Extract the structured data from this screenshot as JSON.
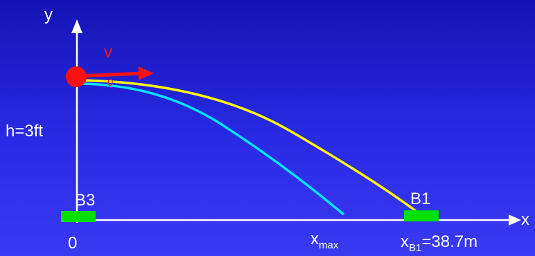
{
  "labels": {
    "y_axis": "y",
    "x_axis": "x",
    "velocity_main": "v",
    "velocity_sub": "0",
    "height": "h=3ft",
    "origin": "0",
    "base_b3": "B3",
    "base_b1": "B1",
    "xmax_main": "x",
    "xmax_sub": "max",
    "xb1_main": "x",
    "xb1_sub": "B1",
    "xb1_value": "=38.7m"
  },
  "colors": {
    "background_top": "#1414b4",
    "background_bottom": "#3a3af2",
    "axes": "#ffffff",
    "ball": "#ff1010",
    "velocity_arrow": "#ff1010",
    "trajectory_long": "#ffff00",
    "trajectory_short": "#00e5ff",
    "base_marker": "#00e000"
  }
}
